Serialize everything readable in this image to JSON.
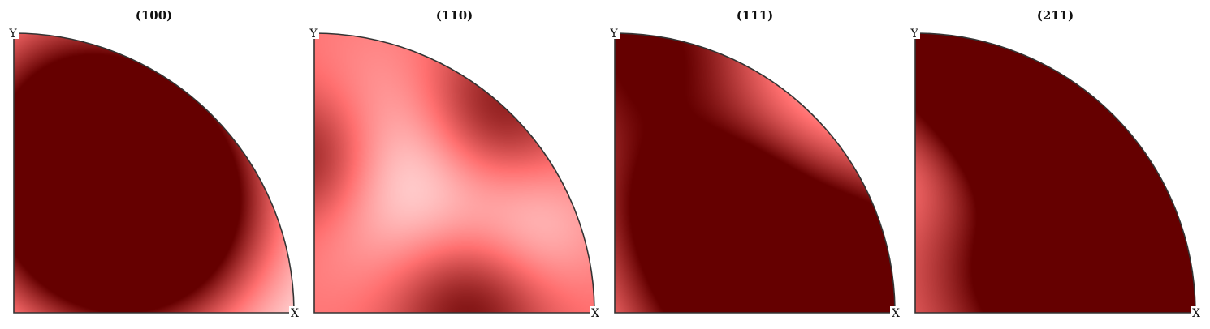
{
  "chart_data": {
    "type": "heatmap",
    "description_free": true,
    "colormap": [
      "#ffffff",
      "#ff6f6f",
      "#650000"
    ],
    "panels": [
      {
        "title": "(100)",
        "x_label": "X",
        "y_label": "Y",
        "peaks": [
          {
            "az": 0.65,
            "r": 0.62,
            "amp": 1.0,
            "w": 0.3
          },
          {
            "az": 1.05,
            "r": 0.6,
            "amp": 0.95,
            "w": 0.3
          },
          {
            "az": 0.85,
            "r": 0.45,
            "amp": 0.6,
            "w": 0.35
          },
          {
            "az": 1.4,
            "r": 0.9,
            "amp": 0.35,
            "w": 0.32
          }
        ],
        "base": 0.0
      },
      {
        "title": "(110)",
        "x_label": "X",
        "y_label": "Y",
        "peaks": [
          {
            "az": 1.57,
            "r": 0.55,
            "amp": 0.5,
            "w": 0.18
          },
          {
            "az": 0.85,
            "r": 0.95,
            "amp": 0.55,
            "w": 0.2
          },
          {
            "az": 0.05,
            "r": 0.55,
            "amp": 0.5,
            "w": 0.2
          }
        ],
        "holes": [
          {
            "az": 0.98,
            "r": 0.62,
            "amp": 0.5,
            "w": 0.28
          },
          {
            "az": 0.35,
            "r": 0.85,
            "amp": 0.25,
            "w": 0.18
          }
        ],
        "base": 0.5
      },
      {
        "title": "(111)",
        "x_label": "X",
        "y_label": "Y",
        "peaks": [
          {
            "az": 1.45,
            "r": 0.95,
            "amp": 0.9,
            "w": 0.3
          },
          {
            "az": 0.2,
            "r": 0.4,
            "amp": 0.9,
            "w": 0.3
          },
          {
            "az": 0.12,
            "r": 0.95,
            "amp": 0.9,
            "w": 0.3
          },
          {
            "az": 0.75,
            "r": 0.55,
            "amp": 0.65,
            "w": 0.2
          },
          {
            "az": 0.1,
            "r": 0.7,
            "amp": 0.4,
            "w": 0.25
          },
          {
            "az": 1.4,
            "r": 0.4,
            "amp": 0.25,
            "w": 0.2
          }
        ],
        "base": 0.15
      },
      {
        "title": "(211)",
        "x_label": "X",
        "y_label": "Y",
        "peaks": [
          {
            "az": 1.35,
            "r": 0.95,
            "amp": 0.9,
            "w": 0.3
          },
          {
            "az": 0.3,
            "r": 0.55,
            "amp": 0.85,
            "w": 0.3
          },
          {
            "az": 0.2,
            "r": 0.95,
            "amp": 0.9,
            "w": 0.3
          },
          {
            "az": 1.05,
            "r": 0.75,
            "amp": 0.5,
            "w": 0.25
          },
          {
            "az": 0.65,
            "r": 0.85,
            "amp": 0.45,
            "w": 0.25
          }
        ],
        "holes": [
          {
            "az": 0.5,
            "r": 1.0,
            "amp": 0.45,
            "w": 0.22
          },
          {
            "az": 1.5,
            "r": 0.55,
            "amp": 0.35,
            "w": 0.18
          },
          {
            "az": 0.9,
            "r": 0.5,
            "amp": 0.25,
            "w": 0.16
          }
        ],
        "base": 0.45
      }
    ]
  }
}
